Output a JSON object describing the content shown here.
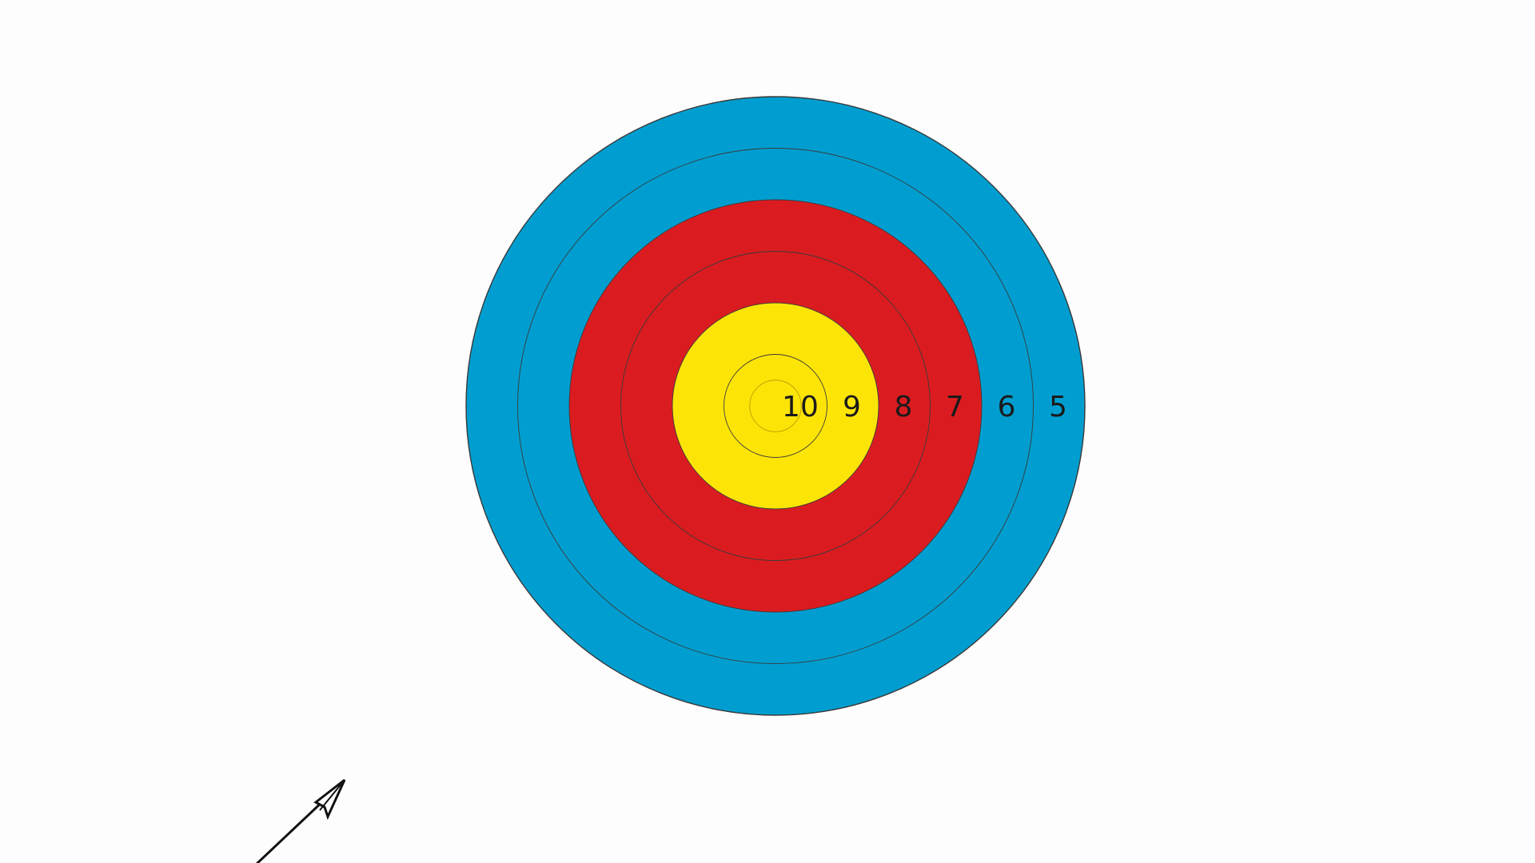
{
  "target": {
    "colors": {
      "blue": "#009ed0",
      "red": "#da1c20",
      "yellow": "#fde407",
      "ring_line": "#3a3a3a",
      "background": "#fdfdfd"
    },
    "rings": [
      {
        "score": 5,
        "label": "5",
        "color": "blue"
      },
      {
        "score": 6,
        "label": "6",
        "color": "blue"
      },
      {
        "score": 7,
        "label": "7",
        "color": "red"
      },
      {
        "score": 8,
        "label": "8",
        "color": "red"
      },
      {
        "score": 9,
        "label": "9",
        "color": "yellow"
      },
      {
        "score": 10,
        "label": "10",
        "color": "yellow"
      }
    ]
  },
  "arrow": {
    "icon": "arrow-icon",
    "color": "#111111"
  }
}
